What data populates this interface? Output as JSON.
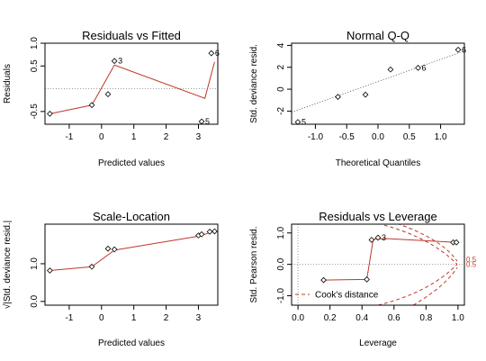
{
  "chart_data": [
    {
      "type": "scatter",
      "title": "Residuals vs Fitted",
      "xlabel": "Predicted values",
      "ylabel": "Residuals",
      "xlim": [
        -1.75,
        3.6
      ],
      "ylim": [
        -0.78,
        1.0
      ],
      "xticks": [
        -1,
        0,
        1,
        2,
        3
      ],
      "yticks": [
        -0.5,
        0.5,
        1.0
      ],
      "ytick_labels": [
        "-0.5",
        "0.5",
        "1.0"
      ],
      "hline": 0,
      "points": [
        {
          "x": -1.6,
          "y": -0.55,
          "label": ""
        },
        {
          "x": -0.3,
          "y": -0.36,
          "label": ""
        },
        {
          "x": 0.2,
          "y": -0.12,
          "label": ""
        },
        {
          "x": 0.4,
          "y": 0.61,
          "label": "3"
        },
        {
          "x": 3.1,
          "y": -0.72,
          "label": "5"
        },
        {
          "x": 3.4,
          "y": 0.78,
          "label": "6"
        }
      ],
      "smooth": [
        {
          "x": -1.6,
          "y": -0.55
        },
        {
          "x": -0.3,
          "y": -0.36
        },
        {
          "x": 0.4,
          "y": 0.52
        },
        {
          "x": 3.2,
          "y": -0.21
        },
        {
          "x": 3.5,
          "y": 0.59
        }
      ]
    },
    {
      "type": "scatter",
      "title": "Normal Q-Q",
      "xlabel": "Theoretical Quantiles",
      "ylabel": "Std. deviance resid.",
      "xlim": [
        -1.38,
        1.38
      ],
      "ylim": [
        -3.2,
        4.2
      ],
      "xticks": [
        -1.0,
        -0.5,
        0.0,
        0.5,
        1.0
      ],
      "xtick_labels": [
        "-1.0",
        "-0.5",
        "0.0",
        "0.5",
        "1.0"
      ],
      "yticks": [
        -2,
        0,
        2,
        4
      ],
      "points": [
        {
          "x": -1.28,
          "y": -3.0,
          "label": "5"
        },
        {
          "x": -0.64,
          "y": -0.7,
          "label": ""
        },
        {
          "x": -0.2,
          "y": -0.5,
          "label": ""
        },
        {
          "x": 0.2,
          "y": 1.8,
          "label": ""
        },
        {
          "x": 0.64,
          "y": 1.95,
          "label": "6"
        },
        {
          "x": 1.28,
          "y": 3.6,
          "label": "6"
        }
      ],
      "refline": [
        {
          "x": -1.38,
          "y": -2.1
        },
        {
          "x": 1.38,
          "y": 3.5
        }
      ]
    },
    {
      "type": "scatter",
      "title": "Scale-Location",
      "xlabel": "Predicted values",
      "ylabel": "√|Std. deviance resid.|",
      "xlim": [
        -1.75,
        3.6
      ],
      "ylim": [
        -0.1,
        2.05
      ],
      "xticks": [
        -1,
        0,
        1,
        2,
        3
      ],
      "yticks": [
        0.0,
        1.0
      ],
      "ytick_labels": [
        "0.0",
        "1.0"
      ],
      "points": [
        {
          "x": -1.6,
          "y": 0.82,
          "label": ""
        },
        {
          "x": -0.3,
          "y": 0.92,
          "label": ""
        },
        {
          "x": 0.2,
          "y": 1.4,
          "label": ""
        },
        {
          "x": 0.4,
          "y": 1.38,
          "label": ""
        },
        {
          "x": 3.0,
          "y": 1.75,
          "label": ""
        },
        {
          "x": 3.1,
          "y": 1.78,
          "label": ""
        },
        {
          "x": 3.35,
          "y": 1.85,
          "label": ""
        },
        {
          "x": 3.5,
          "y": 1.86,
          "label": ""
        }
      ],
      "smooth": [
        {
          "x": -1.6,
          "y": 0.82
        },
        {
          "x": -0.3,
          "y": 0.92
        },
        {
          "x": 0.4,
          "y": 1.36
        },
        {
          "x": 3.0,
          "y": 1.73
        },
        {
          "x": 3.5,
          "y": 1.86
        }
      ]
    },
    {
      "type": "scatter",
      "title": "Residuals vs Leverage",
      "xlabel": "Leverage",
      "ylabel": "Std. Pearson resid.",
      "xlim": [
        -0.04,
        1.04
      ],
      "ylim": [
        -1.3,
        1.28
      ],
      "xticks": [
        0.0,
        0.2,
        0.4,
        0.6,
        0.8,
        1.0
      ],
      "xtick_labels": [
        "0.0",
        "0.2",
        "0.4",
        "0.6",
        "0.8",
        "1.0"
      ],
      "yticks": [
        -1.0,
        0.0,
        1.0
      ],
      "ytick_labels": [
        "-1.0",
        "0.0",
        "1.0"
      ],
      "hline": 0,
      "vline": 0,
      "points": [
        {
          "x": 0.16,
          "y": -0.5,
          "label": ""
        },
        {
          "x": 0.43,
          "y": -0.48,
          "label": ""
        },
        {
          "x": 0.46,
          "y": 0.78,
          "label": ""
        },
        {
          "x": 0.5,
          "y": 0.85,
          "label": "3"
        },
        {
          "x": 0.97,
          "y": 0.7,
          "label": ""
        },
        {
          "x": 0.99,
          "y": 0.7,
          "label": ""
        }
      ],
      "smooth": [
        {
          "x": 0.16,
          "y": -0.5
        },
        {
          "x": 0.43,
          "y": -0.48
        },
        {
          "x": 0.47,
          "y": 0.8
        },
        {
          "x": 0.55,
          "y": 0.82
        },
        {
          "x": 0.99,
          "y": 0.7
        }
      ],
      "cook_labels": [
        "0.5",
        "0.5"
      ],
      "legend": {
        "label": "Cook's distance",
        "position": "bottom-left"
      }
    }
  ]
}
